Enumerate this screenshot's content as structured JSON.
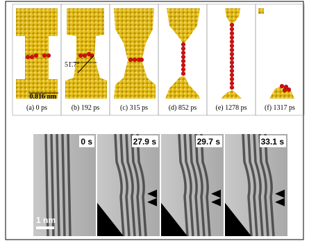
{
  "top_panels": [
    "(a) 0 ps",
    "(b) 192 ps",
    "(c) 315 ps",
    "(d) 852 ps",
    "(e) 1278 ps",
    "(f) 1317 ps"
  ],
  "annotations": {
    "scale": "0.816 nm",
    "angle": "51.7°"
  },
  "bottom_panels": [
    "0 s",
    "27.9 s",
    "29.7 s",
    "33.1 s"
  ],
  "scale_bar": "1 nm"
}
